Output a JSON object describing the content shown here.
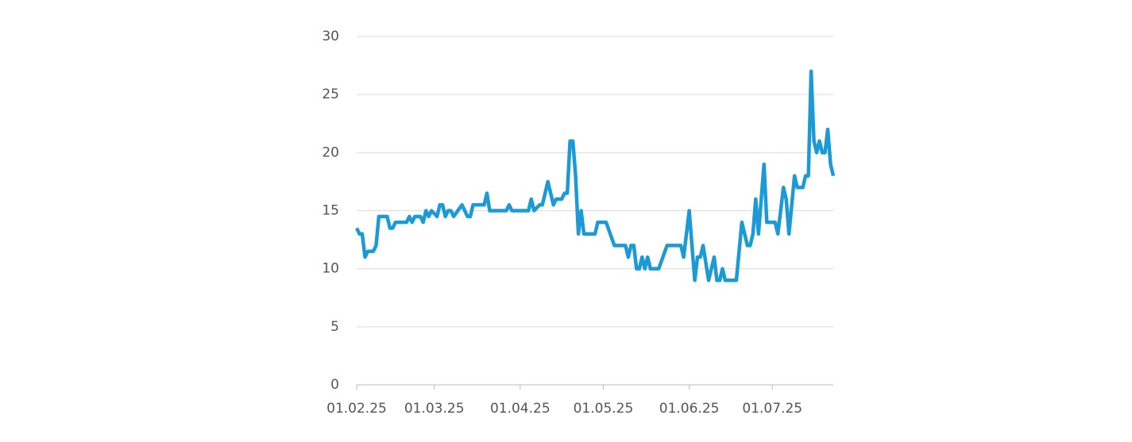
{
  "chart_data": {
    "type": "line",
    "x": [
      "01.02.25",
      "02.02.25",
      "03.02.25",
      "04.02.25",
      "05.02.25",
      "07.02.25",
      "08.02.25",
      "09.02.25",
      "12.02.25",
      "13.02.25",
      "14.02.25",
      "15.02.25",
      "19.02.25",
      "20.02.25",
      "21.02.25",
      "22.02.25",
      "24.02.25",
      "25.02.25",
      "26.02.25",
      "27.02.25",
      "28.02.25",
      "02.03.25",
      "03.03.25",
      "04.03.25",
      "05.03.25",
      "06.03.25",
      "07.03.25",
      "08.03.25",
      "11.03.25",
      "13.03.25",
      "14.03.25",
      "15.03.25",
      "19.03.25",
      "20.03.25",
      "21.03.25",
      "27.03.25",
      "28.03.25",
      "29.03.25",
      "01.04.25",
      "04.04.25",
      "05.04.25",
      "06.04.25",
      "08.04.25",
      "09.04.25",
      "11.04.25",
      "13.04.25",
      "14.04.25",
      "16.04.25",
      "17.04.25",
      "18.04.25",
      "19.04.25",
      "20.04.25",
      "21.04.25",
      "22.04.25",
      "23.04.25",
      "24.04.25",
      "28.04.25",
      "29.04.25",
      "02.05.25",
      "05.05.25",
      "09.05.25",
      "10.05.25",
      "11.05.25",
      "12.05.25",
      "13.05.25",
      "14.05.25",
      "15.05.25",
      "16.05.25",
      "17.05.25",
      "18.05.25",
      "21.05.25",
      "24.05.25",
      "29.05.25",
      "30.05.25",
      "01.06.25",
      "03.06.25",
      "04.06.25",
      "05.06.25",
      "06.06.25",
      "08.06.25",
      "10.06.25",
      "11.06.25",
      "12.06.25",
      "13.06.25",
      "14.06.25",
      "18.06.25",
      "20.06.25",
      "22.06.25",
      "23.06.25",
      "24.06.25",
      "25.06.25",
      "26.06.25",
      "28.06.25",
      "29.06.25",
      "01.07.25",
      "02.07.25",
      "03.07.25",
      "05.07.25",
      "06.07.25",
      "07.07.25",
      "09.07.25",
      "10.07.25",
      "12.07.25",
      "13.07.25",
      "14.07.25",
      "15.07.25",
      "16.07.25",
      "17.07.25",
      "18.07.25",
      "19.07.25",
      "20.07.25",
      "21.07.25",
      "22.07.25",
      "23.07.25"
    ],
    "series": [
      {
        "color": "#1b9ad6",
        "values": [
          13.5,
          13,
          13,
          11,
          11.5,
          11.5,
          12,
          14.5,
          14.5,
          13.5,
          13.5,
          14,
          14,
          14.5,
          14,
          14.5,
          14.5,
          14,
          15,
          14.5,
          15,
          14.5,
          15.5,
          15.5,
          14.5,
          15,
          15,
          14.5,
          15.5,
          14.5,
          14.5,
          15.5,
          15.5,
          16.5,
          15,
          15,
          15.5,
          15,
          15,
          15,
          16,
          15,
          15.5,
          15.5,
          17.5,
          15.5,
          16,
          16,
          16.5,
          16.5,
          21,
          21,
          18,
          13,
          15,
          13,
          13,
          14,
          14,
          12,
          12,
          11,
          12,
          12,
          10,
          10,
          11,
          10,
          11,
          10,
          10,
          12,
          12,
          11,
          15,
          9,
          11,
          11,
          12,
          9,
          11,
          9,
          9,
          10,
          9,
          9,
          14,
          12,
          12,
          13,
          16,
          13,
          19,
          14,
          14,
          14,
          13,
          17,
          16,
          13,
          18,
          17,
          17,
          18,
          18,
          27,
          21,
          20,
          21,
          20,
          20,
          22,
          19,
          18
        ]
      }
    ],
    "xlim": [
      "01.02.25",
      "23.07.25"
    ],
    "xticks": [
      "01.02.25",
      "01.03.25",
      "01.04.25",
      "01.05.25",
      "01.06.25",
      "01.07.25"
    ],
    "ylim": [
      0,
      30
    ],
    "yticks": [
      0,
      5,
      10,
      15,
      20,
      25,
      30
    ],
    "grid": true
  }
}
